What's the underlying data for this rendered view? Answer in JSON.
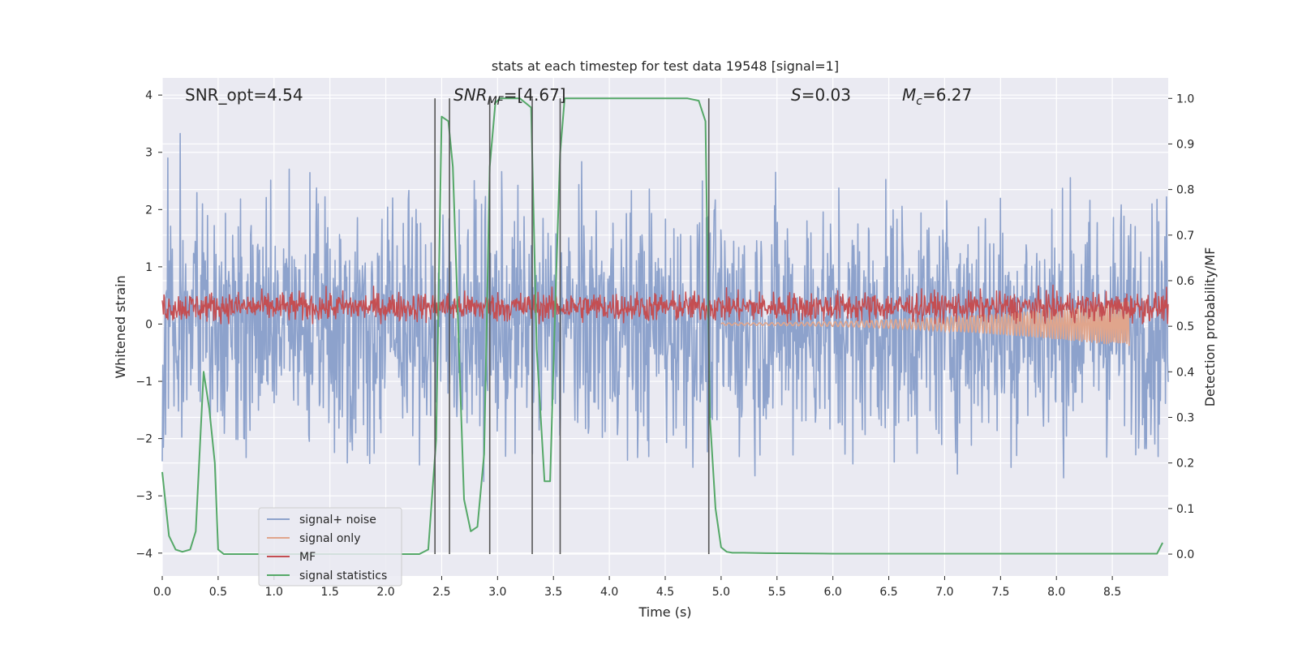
{
  "chart_data": {
    "type": "line",
    "title": "stats at each timestep for test data 19548 [signal=1]",
    "xlabel": "Time (s)",
    "ylabel": "Whitened strain",
    "y2label": "Detection probability/MF",
    "xlim": [
      0.0,
      9.0
    ],
    "ylim": [
      -4.4,
      4.3
    ],
    "y2lim": [
      -0.048,
      1.045
    ],
    "xticks": [
      "0.0",
      "0.5",
      "1.0",
      "1.5",
      "2.0",
      "2.5",
      "3.0",
      "3.5",
      "4.0",
      "4.5",
      "5.0",
      "5.5",
      "6.0",
      "6.5",
      "7.0",
      "7.5",
      "8.0",
      "8.5"
    ],
    "yticks": [
      "4",
      "3",
      "2",
      "1",
      "0",
      "−1",
      "−2",
      "−3",
      "−4"
    ],
    "y2ticks": [
      "1.0",
      "0.9",
      "0.8",
      "0.7",
      "0.6",
      "0.5",
      "0.4",
      "0.3",
      "0.2",
      "0.1",
      "0.0"
    ],
    "annotations": {
      "snr_opt": "SNR_opt=4.54",
      "snr_mf_main": "SNR",
      "snr_mf_sub": "MF",
      "snr_mf_val": "=[4.67]",
      "s_main": "S",
      "s_val": "=0.03",
      "mc_main": "M",
      "mc_sub": "c",
      "mc_val": "=6.27"
    },
    "legend": [
      "signal+ noise",
      "signal only",
      "MF",
      "signal statistics"
    ],
    "legend_position": "lower-left",
    "colors": {
      "noise": "#8da2cc",
      "signal_only": "#e0a58c",
      "mf": "#c44e52",
      "stat": "#55a868",
      "vline": "#555555",
      "panel": "#eaeaf2",
      "grid": "#ffffff"
    },
    "series": [
      {
        "name": "signal+ noise",
        "description_range": "noisy whitened strain, mostly between -3 and 3",
        "noise_bounds": [
          -3.8,
          3.5
        ]
      },
      {
        "name": "signal only",
        "chirp": {
          "start": 5.0,
          "end": 8.65,
          "amplitude_start": 0.02,
          "amplitude_end": 0.4
        }
      },
      {
        "name": "MF",
        "range": [
          0.0,
          0.75
        ]
      },
      {
        "name": "signal statistics",
        "x": [
          0.0,
          0.06,
          0.12,
          0.18,
          0.25,
          0.3,
          0.37,
          0.42,
          0.47,
          0.5,
          0.55,
          0.6,
          0.7,
          0.8,
          1.0,
          1.5,
          2.0,
          2.3,
          2.38,
          2.45,
          2.5,
          2.56,
          2.6,
          2.7,
          2.76,
          2.82,
          2.88,
          2.93,
          2.98,
          3.02,
          3.1,
          3.2,
          3.3,
          3.35,
          3.42,
          3.47,
          3.52,
          3.56,
          3.6,
          3.64,
          3.7,
          3.8,
          4.0,
          4.5,
          4.7,
          4.8,
          4.86,
          4.9,
          4.95,
          5.0,
          5.05,
          5.1,
          5.2,
          5.4,
          6.0,
          7.0,
          8.0,
          8.8,
          8.9,
          8.95
        ],
        "y": [
          0.18,
          0.04,
          0.01,
          0.005,
          0.01,
          0.05,
          0.4,
          0.32,
          0.2,
          0.01,
          0.0,
          0.0,
          0.0,
          0.0,
          0.0,
          0.0,
          0.0,
          0.0,
          0.01,
          0.25,
          0.96,
          0.95,
          0.85,
          0.12,
          0.05,
          0.06,
          0.22,
          0.85,
          0.99,
          1.0,
          1.0,
          1.0,
          0.98,
          0.45,
          0.16,
          0.16,
          0.58,
          0.88,
          1.0,
          1.0,
          1.0,
          1.0,
          1.0,
          1.0,
          1.0,
          0.995,
          0.95,
          0.3,
          0.1,
          0.015,
          0.005,
          0.003,
          0.003,
          0.002,
          0.001,
          0.001,
          0.001,
          0.001,
          0.001,
          0.025
        ]
      }
    ],
    "vertical_lines_x": [
      2.44,
      2.57,
      2.93,
      3.31,
      3.56,
      4.89
    ]
  }
}
